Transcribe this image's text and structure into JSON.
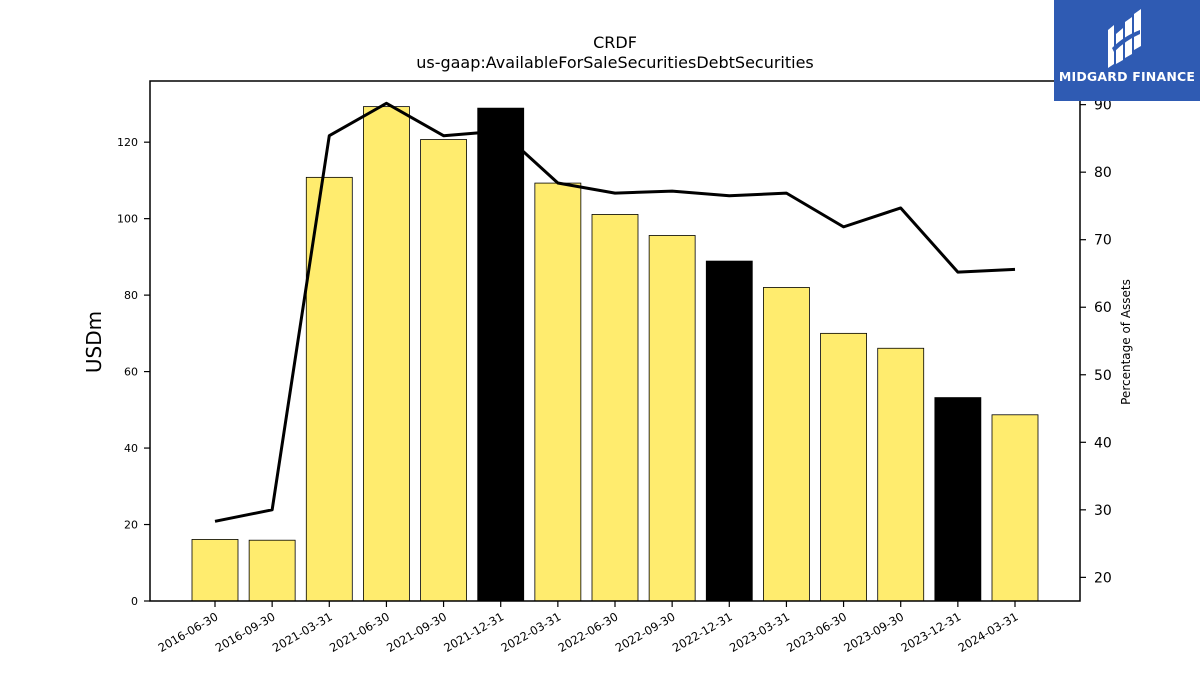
{
  "chart_data": {
    "type": "bar",
    "title": "CRDF",
    "subtitle": "us-gaap:AvailableForSaleSecuritiesDebtSecurities",
    "ylabel": "USDm",
    "y2label": "Percentage of Assets",
    "ylim": [
      0,
      136
    ],
    "y2lim": [
      16.5,
      93.5
    ],
    "yticks": [
      0,
      20,
      40,
      60,
      80,
      100,
      120
    ],
    "y2ticks": [
      20,
      30,
      40,
      50,
      60,
      70,
      80,
      90
    ],
    "categories": [
      "2016-06-30",
      "2016-09-30",
      "2021-03-31",
      "2021-06-30",
      "2021-09-30",
      "2021-12-31",
      "2022-03-31",
      "2022-06-30",
      "2022-09-30",
      "2022-12-31",
      "2023-03-31",
      "2023-06-30",
      "2023-09-30",
      "2023-12-31",
      "2024-03-31"
    ],
    "series": [
      {
        "type": "bar",
        "axis": "left",
        "values": [
          16.1,
          15.9,
          110.8,
          129.3,
          120.7,
          128.9,
          109.3,
          101.1,
          95.6,
          88.9,
          82.0,
          70.0,
          66.1,
          53.2,
          48.7
        ],
        "colors": [
          "#ffec6e",
          "#ffec6e",
          "#ffec6e",
          "#ffec6e",
          "#ffec6e",
          "#000000",
          "#ffec6e",
          "#ffec6e",
          "#ffec6e",
          "#000000",
          "#ffec6e",
          "#ffec6e",
          "#ffec6e",
          "#000000",
          "#ffec6e"
        ]
      },
      {
        "type": "line",
        "axis": "right",
        "color": "#000000",
        "values": [
          28.3,
          30.0,
          85.4,
          90.2,
          85.4,
          86.1,
          78.4,
          76.9,
          77.2,
          76.5,
          76.9,
          71.9,
          74.7,
          65.2,
          65.6
        ]
      }
    ],
    "grid": false,
    "legend": "none"
  },
  "logo": {
    "text": "MIDGARD FINANCE",
    "background": "#2f5bb3"
  }
}
